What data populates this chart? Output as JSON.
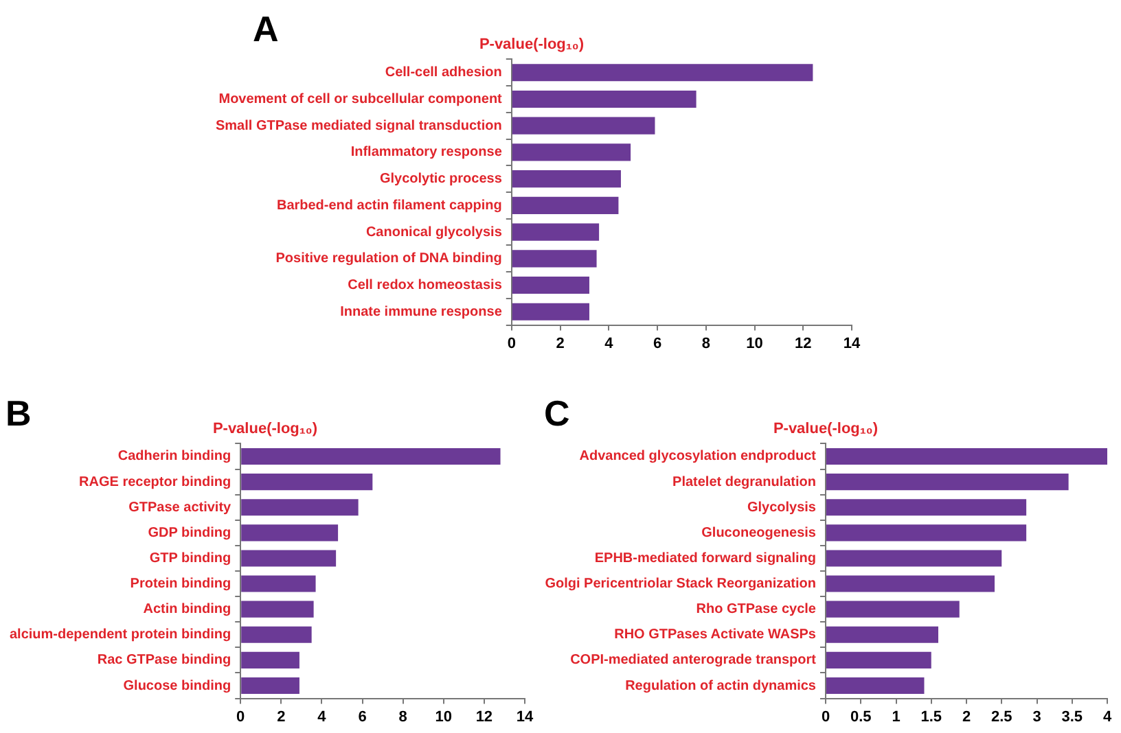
{
  "chart_data": [
    {
      "type": "bar",
      "orientation": "horizontal",
      "title": "P-value(-log₁₀)",
      "annotations": [
        "A"
      ],
      "categories": [
        "Cell-cell adhesion",
        "Movement of cell or subcellular component",
        "Small GTPase mediated signal transduction",
        "Inflammatory response",
        "Glycolytic process",
        "Barbed-end actin filament capping",
        "Canonical glycolysis",
        "Positive regulation of DNA binding",
        "Cell redox homeostasis",
        "Innate immune response"
      ],
      "values": [
        12.4,
        7.6,
        5.9,
        4.9,
        4.5,
        4.4,
        3.6,
        3.5,
        3.2,
        3.2
      ],
      "color": "#6b3a96",
      "xlim": [
        0,
        14
      ],
      "xticks": [
        0,
        2,
        4,
        6,
        8,
        10,
        12,
        14
      ]
    },
    {
      "type": "bar",
      "orientation": "horizontal",
      "title": "P-value(-log₁₀)",
      "annotations": [
        "B"
      ],
      "categories": [
        "Cadherin binding",
        "RAGE receptor binding",
        "GTPase activity",
        "GDP binding",
        "GTP binding",
        "Protein binding",
        "Actin binding",
        "alcium-dependent protein binding",
        "Rac GTPase binding",
        "Glucose binding"
      ],
      "values": [
        12.8,
        6.5,
        5.8,
        4.8,
        4.7,
        3.7,
        3.6,
        3.5,
        2.9,
        2.9
      ],
      "color": "#6b3a96",
      "xlim": [
        0,
        14
      ],
      "xticks": [
        0,
        2,
        4,
        6,
        8,
        10,
        12,
        14
      ]
    },
    {
      "type": "bar",
      "orientation": "horizontal",
      "title": "P-value(-log₁₀)",
      "annotations": [
        "C"
      ],
      "categories": [
        "Advanced glycosylation endproduct",
        "Platelet degranulation",
        "Glycolysis",
        "Gluconeogenesis",
        "EPHB-mediated forward signaling",
        "Golgi Pericentriolar Stack Reorganization",
        "Rho GTPase cycle",
        "RHO GTPases Activate WASPs",
        "COPI-mediated anterograde transport",
        "Regulation of actin dynamics"
      ],
      "values": [
        4.0,
        3.45,
        2.85,
        2.85,
        2.5,
        2.4,
        1.9,
        1.6,
        1.5,
        1.4
      ],
      "color": "#6b3a96",
      "xlim": [
        0,
        4
      ],
      "xticks": [
        0,
        0.5,
        1,
        1.5,
        2,
        2.5,
        3,
        3.5,
        4
      ]
    }
  ]
}
